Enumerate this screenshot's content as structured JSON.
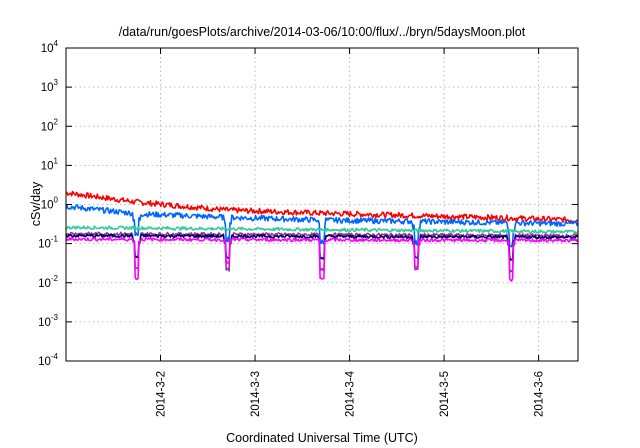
{
  "chart_data": {
    "type": "line",
    "title": "/data/run/goesPlots/archive/2014-03-06/10:00/flux/../bryn/5daysMoon.plot",
    "xlabel": "Coordinated Universal Time (UTC)",
    "ylabel": "cSv/day",
    "yscale": "log",
    "ylim": [
      0.0001,
      10000
    ],
    "xlim": [
      "2014-03-01T00:00",
      "2014-03-06T10:00"
    ],
    "grid": true,
    "legend": "none",
    "y_ticks": [
      {
        "base": "10",
        "exp": "-4",
        "value": 0.0001
      },
      {
        "base": "10",
        "exp": "-3",
        "value": 0.001
      },
      {
        "base": "10",
        "exp": "-2",
        "value": 0.01
      },
      {
        "base": "10",
        "exp": "-1",
        "value": 0.1
      },
      {
        "base": "10",
        "exp": "0",
        "value": 1
      },
      {
        "base": "10",
        "exp": "1",
        "value": 10
      },
      {
        "base": "10",
        "exp": "2",
        "value": 100
      },
      {
        "base": "10",
        "exp": "3",
        "value": 1000
      },
      {
        "base": "10",
        "exp": "4",
        "value": 10000
      }
    ],
    "x_ticks": [
      {
        "label": "2014-3-2",
        "date": "2014-03-02T00:00"
      },
      {
        "label": "2014-3-3",
        "date": "2014-03-03T00:00"
      },
      {
        "label": "2014-3-4",
        "date": "2014-03-04T00:00"
      },
      {
        "label": "2014-3-5",
        "date": "2014-03-05T00:00"
      },
      {
        "label": "2014-3-6",
        "date": "2014-03-06T00:00"
      }
    ],
    "dip_times": [
      "2014-03-01T18:00",
      "2014-03-02T17:00",
      "2014-03-03T17:00",
      "2014-03-04T17:00",
      "2014-03-05T17:00"
    ],
    "series": [
      {
        "color": "#ff0000",
        "x": [
          "2014-03-01T00:00",
          "2014-03-01T18:00",
          "2014-03-02T17:00",
          "2014-03-03T17:00",
          "2014-03-04T17:00",
          "2014-03-05T17:00",
          "2014-03-06T10:00"
        ],
        "y": [
          2.0,
          1.15,
          0.72,
          0.6,
          0.52,
          0.45,
          0.4
        ]
      },
      {
        "color": "#0066ff",
        "x": [
          "2014-03-01T00:00",
          "2014-03-01T18:00",
          "2014-03-02T17:00",
          "2014-03-03T17:00",
          "2014-03-04T17:00",
          "2014-03-05T17:00",
          "2014-03-06T10:00"
        ],
        "y": [
          0.9,
          0.58,
          0.47,
          0.4,
          0.37,
          0.34,
          0.32
        ]
      },
      {
        "color": "#33cc99",
        "x": [
          "2014-03-01T00:00",
          "2014-03-06T10:00"
        ],
        "y": [
          0.26,
          0.2
        ]
      },
      {
        "color": "#993399",
        "x": [
          "2014-03-01T00:00",
          "2014-03-06T10:00"
        ],
        "y": [
          0.18,
          0.16
        ]
      },
      {
        "color": "#000066",
        "x": [
          "2014-03-01T00:00",
          "2014-03-06T10:00"
        ],
        "y": [
          0.16,
          0.145
        ]
      },
      {
        "color": "#ff00ff",
        "x": [
          "2014-03-01T00:00",
          "2014-03-06T10:00"
        ],
        "y": [
          0.13,
          0.12
        ]
      }
    ]
  }
}
